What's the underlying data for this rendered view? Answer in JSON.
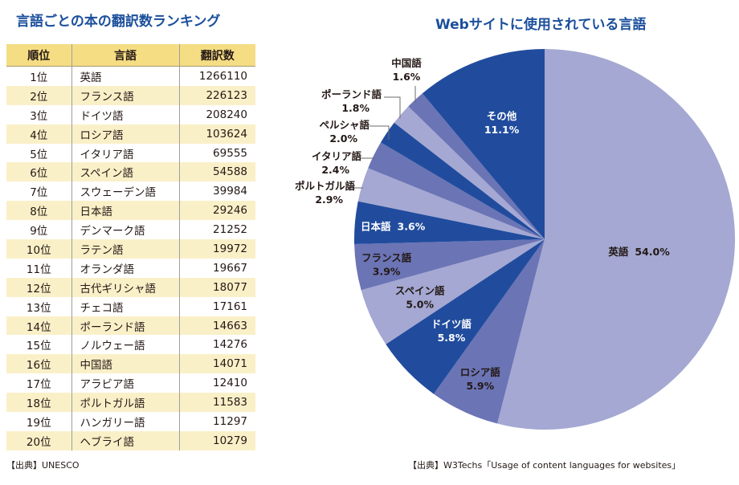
{
  "left_panel": {
    "title": "言語ごとの本の翻訳数ランキング",
    "headers": [
      "順位",
      "言語",
      "翻訳数"
    ],
    "rows": [
      {
        "rank": "1位",
        "language": "英語",
        "count": "1266110"
      },
      {
        "rank": "2位",
        "language": "フランス語",
        "count": "226123"
      },
      {
        "rank": "3位",
        "language": "ドイツ語",
        "count": "208240"
      },
      {
        "rank": "4位",
        "language": "ロシア語",
        "count": "103624"
      },
      {
        "rank": "5位",
        "language": "イタリア語",
        "count": "69555"
      },
      {
        "rank": "6位",
        "language": "スペイン語",
        "count": "54588"
      },
      {
        "rank": "7位",
        "language": "スウェーデン語",
        "count": "39984"
      },
      {
        "rank": "8位",
        "language": "日本語",
        "count": "29246"
      },
      {
        "rank": "9位",
        "language": "デンマーク語",
        "count": "21252"
      },
      {
        "rank": "10位",
        "language": "ラテン語",
        "count": "19972"
      },
      {
        "rank": "11位",
        "language": "オランダ語",
        "count": "19667"
      },
      {
        "rank": "12位",
        "language": "古代ギリシャ語",
        "count": "18077"
      },
      {
        "rank": "13位",
        "language": "チェコ語",
        "count": "17161"
      },
      {
        "rank": "14位",
        "language": "ポーランド語",
        "count": "14663"
      },
      {
        "rank": "15位",
        "language": "ノルウェー語",
        "count": "14276"
      },
      {
        "rank": "16位",
        "language": "中国語",
        "count": "14071"
      },
      {
        "rank": "17位",
        "language": "アラビア語",
        "count": "12410"
      },
      {
        "rank": "18位",
        "language": "ポルトガル語",
        "count": "11583"
      },
      {
        "rank": "19位",
        "language": "ハンガリー語",
        "count": "11297"
      },
      {
        "rank": "20位",
        "language": "ヘブライ語",
        "count": "10279"
      }
    ],
    "source": "【出典】UNESCO"
  },
  "right_panel": {
    "title": "Webサイトに使用されている言語",
    "source": "【出典】W3Techs「Usage of content languages for websites」"
  },
  "colors": {
    "title": "#1b4f9c",
    "header_bg": "#f5dd84",
    "alt_row_bg": "#faf0c8",
    "slice_dark": "#214c9e",
    "slice_medium": "#6b74b5",
    "slice_light": "#a4a8d2"
  },
  "chart_data": [
    {
      "type": "table",
      "title": "言語ごとの本の翻訳数ランキング",
      "columns": [
        "順位",
        "言語",
        "翻訳数"
      ],
      "categories": [
        "英語",
        "フランス語",
        "ドイツ語",
        "ロシア語",
        "イタリア語",
        "スペイン語",
        "スウェーデン語",
        "日本語",
        "デンマーク語",
        "ラテン語",
        "オランダ語",
        "古代ギリシャ語",
        "チェコ語",
        "ポーランド語",
        "ノルウェー語",
        "中国語",
        "アラビア語",
        "ポルトガル語",
        "ハンガリー語",
        "ヘブライ語"
      ],
      "values": [
        1266110,
        226123,
        208240,
        103624,
        69555,
        54588,
        39984,
        29246,
        21252,
        19972,
        19667,
        18077,
        17161,
        14663,
        14276,
        14071,
        12410,
        11583,
        11297,
        10279
      ]
    },
    {
      "type": "pie",
      "title": "Webサイトに使用されている言語",
      "start": "top",
      "direction": "clockwise",
      "slices": [
        {
          "label": "英語",
          "value": 54.0,
          "display": "54.0%",
          "shade": "light"
        },
        {
          "label": "ロシア語",
          "value": 5.9,
          "display": "5.9%",
          "shade": "medium"
        },
        {
          "label": "ドイツ語",
          "value": 5.8,
          "display": "5.8%",
          "shade": "dark"
        },
        {
          "label": "スペイン語",
          "value": 5.0,
          "display": "5.0%",
          "shade": "light"
        },
        {
          "label": "フランス語",
          "value": 3.9,
          "display": "3.9%",
          "shade": "medium"
        },
        {
          "label": "日本語",
          "value": 3.6,
          "display": "3.6%",
          "shade": "dark"
        },
        {
          "label": "ポルトガル語",
          "value": 2.9,
          "display": "2.9%",
          "shade": "light"
        },
        {
          "label": "イタリア語",
          "value": 2.4,
          "display": "2.4%",
          "shade": "medium"
        },
        {
          "label": "ペルシャ語",
          "value": 2.0,
          "display": "2.0%",
          "shade": "dark"
        },
        {
          "label": "ポーランド語",
          "value": 1.8,
          "display": "1.8%",
          "shade": "light"
        },
        {
          "label": "中国語",
          "value": 1.6,
          "display": "1.6%",
          "shade": "medium"
        },
        {
          "label": "その他",
          "value": 11.1,
          "display": "11.1%",
          "shade": "dark"
        }
      ]
    }
  ]
}
